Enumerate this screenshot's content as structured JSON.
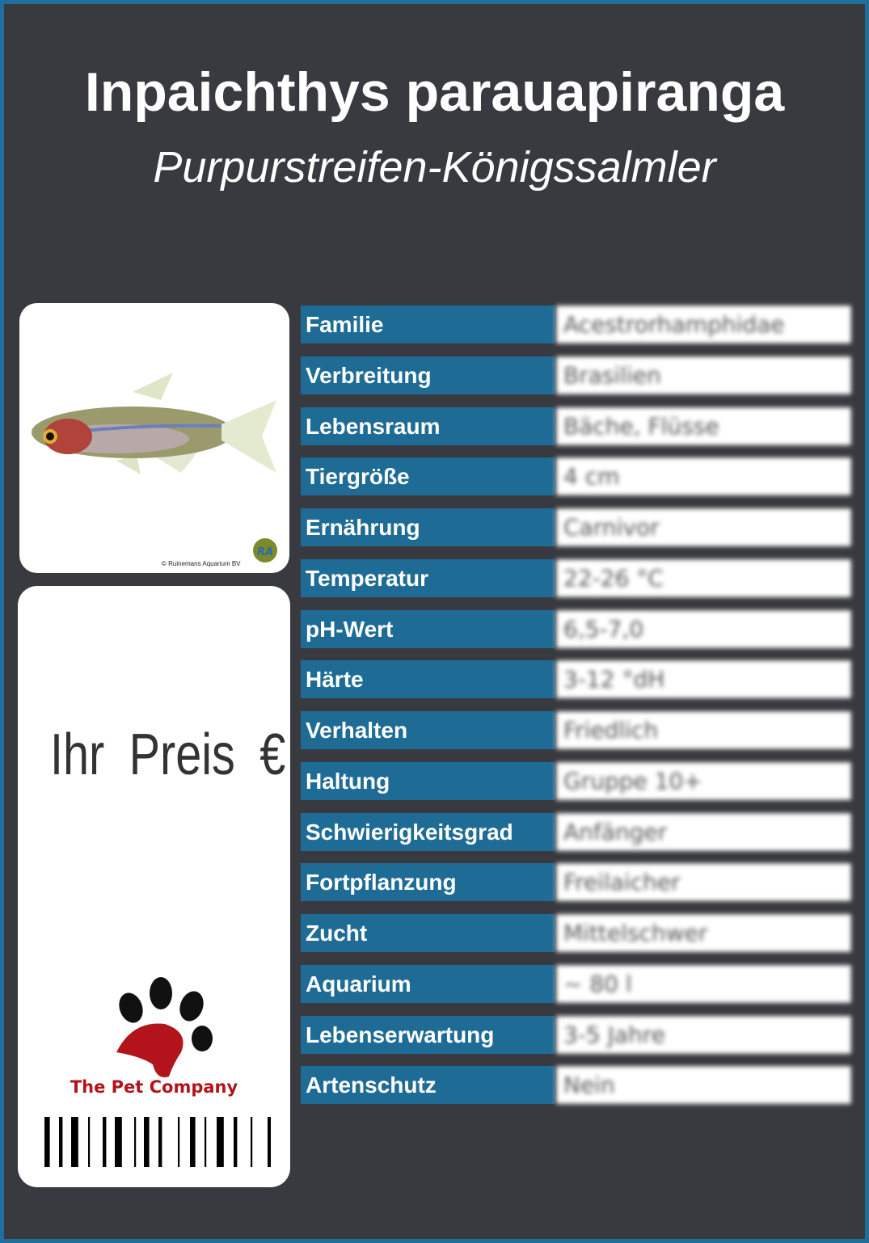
{
  "header": {
    "title": "Inpaichthys parauapiranga",
    "subtitle": "Purpurstreifen-Königssalmler"
  },
  "photo": {
    "credit": "© Ruinemans Aquarium BV",
    "logo_text": "RA"
  },
  "price": {
    "label": "Ihr Preis €",
    "company": "The Pet Company"
  },
  "colors": {
    "border": "#1f6f9c",
    "background": "#393a3f",
    "label_bg": "#1e6c96",
    "company": "#b3131b"
  },
  "rows": [
    {
      "label": "Familie",
      "value": "Acestrorhamphidae"
    },
    {
      "label": "Verbreitung",
      "value": "Brasilien"
    },
    {
      "label": "Lebensraum",
      "value": "Bäche, Flüsse"
    },
    {
      "label": "Tiergröße",
      "value": "4 cm"
    },
    {
      "label": "Ernährung",
      "value": "Carnivor"
    },
    {
      "label": "Temperatur",
      "value": "22-26 °C"
    },
    {
      "label": "pH-Wert",
      "value": "6,5-7,0"
    },
    {
      "label": "Härte",
      "value": "3-12 °dH"
    },
    {
      "label": "Verhalten",
      "value": "Friedlich"
    },
    {
      "label": "Haltung",
      "value": "Gruppe 10+"
    },
    {
      "label": "Schwierigkeitsgrad",
      "value": "Anfänger"
    },
    {
      "label": "Fortpflanzung",
      "value": "Freilaicher"
    },
    {
      "label": "Zucht",
      "value": "Mittelschwer"
    },
    {
      "label": "Aquarium",
      "value": "~ 80 l"
    },
    {
      "label": "Lebenserwartung",
      "value": "3-5 Jahre"
    },
    {
      "label": "Artenschutz",
      "value": "Nein"
    }
  ]
}
